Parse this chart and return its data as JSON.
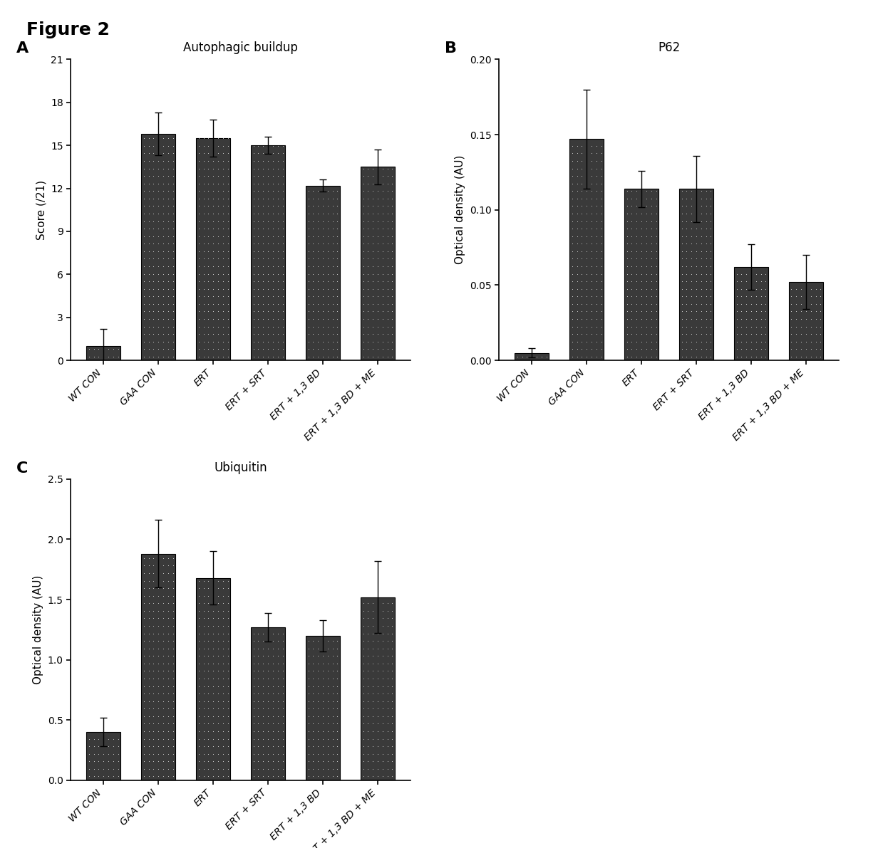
{
  "figure_title": "Figure 2",
  "categories": [
    "WT CON",
    "GAA CON",
    "ERT",
    "ERT + SRT",
    "ERT + 1,3 BD",
    "ERT + 1,3 BD + ME"
  ],
  "panel_A": {
    "title": "Autophagic buildup",
    "ylabel": "Score (/21)",
    "ylim": [
      0,
      21
    ],
    "yticks": [
      0,
      3,
      6,
      9,
      12,
      15,
      18,
      21
    ],
    "ytick_labels": [
      "0",
      "3",
      "6",
      "9",
      "12",
      "15",
      "18",
      "21"
    ],
    "values": [
      1.0,
      15.8,
      15.5,
      15.0,
      12.2,
      13.5
    ],
    "errors": [
      1.2,
      1.5,
      1.3,
      0.6,
      0.4,
      1.2
    ]
  },
  "panel_B": {
    "title": "P62",
    "ylabel": "Optical density (AU)",
    "ylim": [
      0,
      0.2
    ],
    "yticks": [
      0.0,
      0.05,
      0.1,
      0.15,
      0.2
    ],
    "ytick_labels": [
      "0.00",
      "0.05",
      "0.10",
      "0.15",
      "0.20"
    ],
    "values": [
      0.005,
      0.147,
      0.114,
      0.114,
      0.062,
      0.052
    ],
    "errors": [
      0.003,
      0.033,
      0.012,
      0.022,
      0.015,
      0.018
    ]
  },
  "panel_C": {
    "title": "Ubiquitin",
    "ylabel": "Optical density (AU)",
    "ylim": [
      0,
      2.5
    ],
    "yticks": [
      0.0,
      0.5,
      1.0,
      1.5,
      2.0,
      2.5
    ],
    "ytick_labels": [
      "0.0",
      "0.5",
      "1.0",
      "1.5",
      "2.0",
      "2.5"
    ],
    "values": [
      0.4,
      1.88,
      1.68,
      1.27,
      1.2,
      1.52
    ],
    "errors": [
      0.12,
      0.28,
      0.22,
      0.12,
      0.13,
      0.3
    ]
  },
  "bar_color": "#3a3a3a",
  "background_color": "#ffffff",
  "label_fontsize": 11,
  "title_fontsize": 12,
  "tick_fontsize": 10,
  "panel_label_fontsize": 16,
  "figure_title_fontsize": 18
}
